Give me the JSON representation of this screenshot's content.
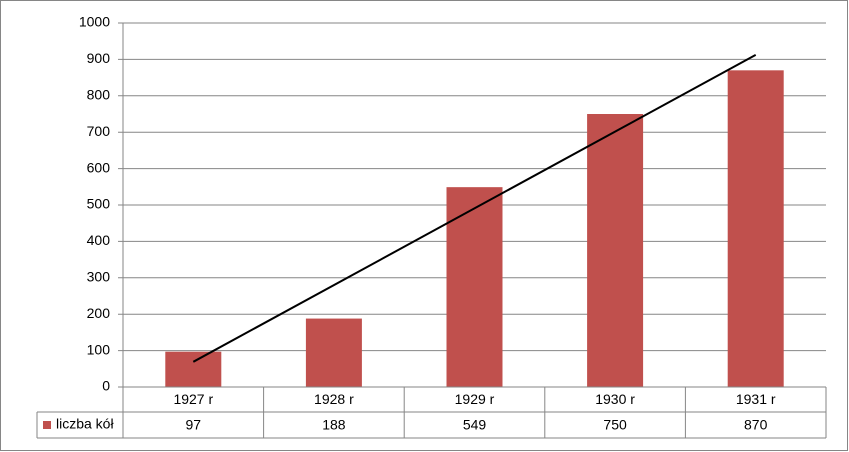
{
  "chart_data": {
    "type": "bar",
    "categories": [
      "1927 r",
      "1928 r",
      "1929 r",
      "1930 r",
      "1931 r"
    ],
    "series": [
      {
        "name": "liczba kół",
        "color": "#c0504d",
        "values": [
          97,
          188,
          549,
          750,
          870
        ]
      }
    ],
    "ylim": [
      0,
      1000
    ],
    "yticks": [
      0,
      100,
      200,
      300,
      400,
      500,
      600,
      700,
      800,
      900,
      1000
    ],
    "grid": true,
    "trendline": "linear",
    "trendline_color": "#000000",
    "data_table": true
  }
}
